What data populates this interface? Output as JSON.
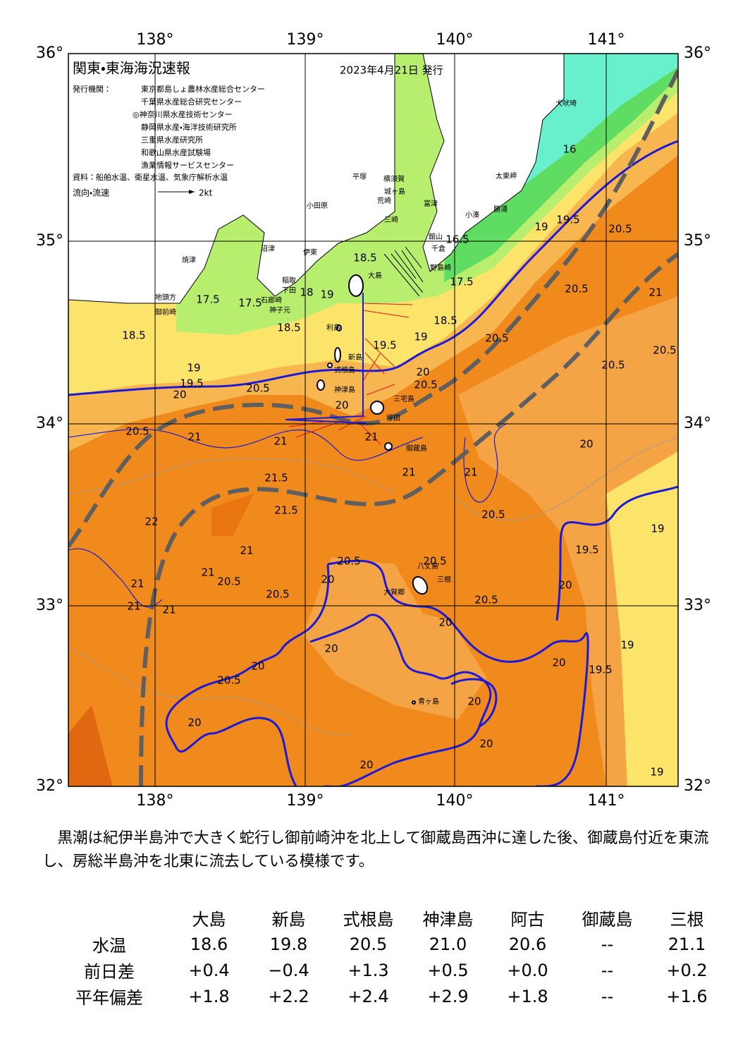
{
  "header": {
    "title": "関東・東海海況速報",
    "date": "2023年4月21日 発行"
  },
  "issuers": {
    "label": "発行機関：",
    "list": [
      "東京都島しょ農林水産総合センター",
      "千葉県水産総合研究センター",
      "◎神奈川県水産技術センター",
      "静岡県水産・海洋技術研究所",
      "三重県水産研究所",
      "和歌山県水産試験場",
      "漁業情報サービスセンター"
    ]
  },
  "source": "資料：船舶水温、衛星水温、気象庁解析水温",
  "legend": {
    "label": "流向・流速",
    "scale": "2kt"
  },
  "axes": {
    "lon": [
      "138°",
      "139°",
      "140°",
      "141°"
    ],
    "lat": [
      "36°",
      "35°",
      "34°",
      "33°",
      "32°"
    ]
  },
  "places": [
    "犬吠埼",
    "太東岬",
    "勝浦",
    "小湊",
    "富津",
    "横須賀",
    "城ヶ島",
    "荒崎",
    "三崎",
    "館山",
    "千倉",
    "野島崎",
    "平塚",
    "小田原",
    "沼津",
    "伊東",
    "焼津",
    "稲取",
    "下田",
    "石廊崎",
    "神子元",
    "地頭方",
    "御前崎",
    "大島",
    "利島",
    "新島",
    "式根島",
    "神津島",
    "三宅島",
    "坪田",
    "御蔵島",
    "八丈島",
    "三根",
    "大賀郷",
    "青ヶ島"
  ],
  "contours": [
    18.5,
    18.5,
    18.5,
    18.5,
    19,
    19,
    19,
    19.5,
    19.5,
    20,
    20,
    20.5,
    20.5,
    20.5,
    20.5,
    20.5,
    20.5,
    20.5,
    20.5,
    21,
    21,
    21,
    21,
    21.5,
    21.5,
    21,
    21,
    20.5,
    20.5,
    20.5,
    20.5,
    20.5,
    20.5,
    20,
    17.5,
    17.5,
    18,
    16.5,
    17.5,
    16,
    19.5,
    19,
    20,
    21,
    21,
    20,
    19.5,
    19,
    19,
    19.5,
    20,
    20,
    20,
    20.5,
    20,
    20,
    20,
    20,
    19,
    21,
    21,
    21,
    22,
    20,
    20
  ],
  "description": "　黒潮は紀伊半島沖で大きく蛇行し御前崎沖を北上して御蔵島西沖に達した後、御蔵島付近を東流し、房総半島沖を北東に流去している模様です。",
  "table": {
    "columns": [
      "大島",
      "新島",
      "式根島",
      "神津島",
      "阿古",
      "御蔵島",
      "三根"
    ],
    "rows": [
      {
        "label": "水温",
        "cells": [
          "18.6",
          "19.8",
          "20.5",
          "21.0",
          "20.6",
          "--",
          "21.1"
        ]
      },
      {
        "label": "前日差",
        "cells": [
          "+0.4",
          "−0.4",
          "+1.3",
          "+0.5",
          "+0.0",
          "--",
          "+0.2"
        ]
      },
      {
        "label": "平年偏差",
        "cells": [
          "+1.8",
          "+2.2",
          "+2.4",
          "+2.9",
          "+1.8",
          "--",
          "+1.6"
        ]
      }
    ]
  }
}
